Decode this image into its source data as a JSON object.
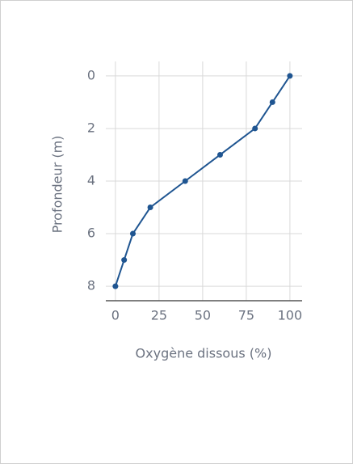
{
  "chart_data": {
    "type": "line",
    "x_label": "Oxygène dissous (%)",
    "y_label": "Profondeur (m)",
    "x": [
      100,
      90,
      80,
      60,
      40,
      20,
      10,
      5,
      0
    ],
    "series": [
      {
        "color": "#1f5591",
        "values": [
          0,
          1,
          2,
          3,
          4,
          5,
          6,
          7,
          8
        ]
      }
    ],
    "xlim": [
      -5.5,
      107
    ],
    "xticks": [
      0,
      25,
      50,
      75,
      100
    ],
    "ylim": [
      8.55,
      -0.55
    ],
    "yticks": [
      0,
      2,
      4,
      6,
      8
    ],
    "grid": true
  }
}
